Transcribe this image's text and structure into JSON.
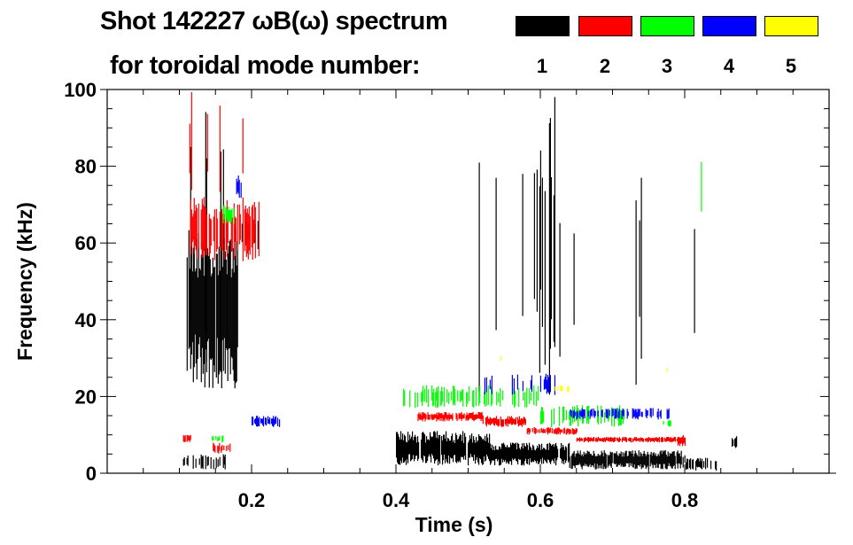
{
  "chart_data": {
    "type": "heatmap",
    "title_line1": "Shot 142227 ωB(ω) spectrum",
    "title_line2": "for toroidal mode number:",
    "xlabel": "Time (s)",
    "ylabel": "Frequency (kHz)",
    "xlim": [
      0,
      1.0
    ],
    "ylim": [
      0,
      100
    ],
    "xticks": [
      0.2,
      0.4,
      0.6,
      0.8
    ],
    "xtick_labels": [
      "0.2",
      "0.4",
      "0.6",
      "0.8"
    ],
    "yticks": [
      0,
      20,
      40,
      60,
      80,
      100
    ],
    "ytick_labels": [
      "0",
      "20",
      "40",
      "60",
      "80",
      "100"
    ],
    "legend": [
      {
        "label": "1",
        "color": "#000000"
      },
      {
        "label": "2",
        "color": "#ff0000"
      },
      {
        "label": "3",
        "color": "#00ff00"
      },
      {
        "label": "4",
        "color": "#0000ff"
      },
      {
        "label": "5",
        "color": "#ffff00"
      }
    ],
    "legend_placement": "top-right",
    "features": [
      {
        "mode": 1,
        "t": [
          0.11,
          0.18
        ],
        "f": [
          22,
          66
        ],
        "density": 0.9
      },
      {
        "mode": 1,
        "t": [
          0.11,
          0.17
        ],
        "f": [
          15,
          95
        ],
        "density": 0.15
      },
      {
        "mode": 1,
        "t": [
          0.105,
          0.17
        ],
        "f": [
          1,
          5
        ],
        "density": 0.5
      },
      {
        "mode": 1,
        "t": [
          0.18,
          0.21
        ],
        "f": [
          58,
          66
        ],
        "density": 0.3
      },
      {
        "mode": 1,
        "t": [
          0.4,
          0.53
        ],
        "f": [
          2,
          11
        ],
        "density": 0.95
      },
      {
        "mode": 1,
        "t": [
          0.53,
          0.64
        ],
        "f": [
          2,
          8
        ],
        "density": 0.95
      },
      {
        "mode": 1,
        "t": [
          0.64,
          0.8
        ],
        "f": [
          1,
          6
        ],
        "density": 0.95
      },
      {
        "mode": 1,
        "t": [
          0.8,
          0.845
        ],
        "f": [
          0.5,
          4
        ],
        "density": 0.6
      },
      {
        "mode": 1,
        "t": [
          0.585,
          0.62
        ],
        "f": [
          20,
          100
        ],
        "density": 0.35
      },
      {
        "mode": 1,
        "t": [
          0.865,
          0.872
        ],
        "f": [
          6,
          10
        ],
        "density": 0.9
      },
      {
        "mode": 1,
        "t": [
          0.5,
          0.82
        ],
        "f": [
          20,
          85
        ],
        "density": 0.02
      },
      {
        "mode": 2,
        "t": [
          0.115,
          0.21
        ],
        "f": [
          55,
          72
        ],
        "density": 0.6
      },
      {
        "mode": 2,
        "t": [
          0.11,
          0.19
        ],
        "f": [
          72,
          100
        ],
        "density": 0.08
      },
      {
        "mode": 2,
        "t": [
          0.105,
          0.115
        ],
        "f": [
          8,
          10
        ],
        "density": 0.8
      },
      {
        "mode": 2,
        "t": [
          0.145,
          0.17
        ],
        "f": [
          5,
          8
        ],
        "density": 0.6
      },
      {
        "mode": 2,
        "t": [
          0.43,
          0.52
        ],
        "f": [
          13.5,
          16
        ],
        "density": 0.9
      },
      {
        "mode": 2,
        "t": [
          0.52,
          0.58
        ],
        "f": [
          12,
          15
        ],
        "density": 0.9
      },
      {
        "mode": 2,
        "t": [
          0.58,
          0.65
        ],
        "f": [
          10,
          12
        ],
        "density": 0.9
      },
      {
        "mode": 2,
        "t": [
          0.65,
          0.8
        ],
        "f": [
          8,
          9.5
        ],
        "density": 0.95
      },
      {
        "mode": 2,
        "t": [
          0.79,
          0.8
        ],
        "f": [
          7,
          10
        ],
        "density": 0.9
      },
      {
        "mode": 3,
        "t": [
          0.16,
          0.175
        ],
        "f": [
          65,
          70
        ],
        "density": 0.6
      },
      {
        "mode": 3,
        "t": [
          0.145,
          0.16
        ],
        "f": [
          8,
          10
        ],
        "density": 0.6
      },
      {
        "mode": 3,
        "t": [
          0.41,
          0.6
        ],
        "f": [
          17,
          23
        ],
        "density": 0.35
      },
      {
        "mode": 3,
        "t": [
          0.6,
          0.72
        ],
        "f": [
          12,
          18
        ],
        "density": 0.35
      },
      {
        "mode": 3,
        "t": [
          0.77,
          0.78
        ],
        "f": [
          12,
          14
        ],
        "density": 0.7
      },
      {
        "mode": 3,
        "t": [
          0.82,
          0.83
        ],
        "f": [
          65,
          83
        ],
        "density": 0.2
      },
      {
        "mode": 4,
        "t": [
          0.2,
          0.24
        ],
        "f": [
          12,
          15
        ],
        "density": 0.8
      },
      {
        "mode": 4,
        "t": [
          0.17,
          0.185
        ],
        "f": [
          71,
          78
        ],
        "density": 0.3
      },
      {
        "mode": 4,
        "t": [
          0.52,
          0.62
        ],
        "f": [
          20,
          26
        ],
        "density": 0.25
      },
      {
        "mode": 4,
        "t": [
          0.64,
          0.78
        ],
        "f": [
          14,
          17
        ],
        "density": 0.5
      },
      {
        "mode": 5,
        "t": [
          0.54,
          0.55
        ],
        "f": [
          29,
          31
        ],
        "density": 0.5
      },
      {
        "mode": 5,
        "t": [
          0.62,
          0.64
        ],
        "f": [
          21,
          23
        ],
        "density": 0.5
      },
      {
        "mode": 5,
        "t": [
          0.775,
          0.78
        ],
        "f": [
          26,
          28
        ],
        "density": 0.5
      }
    ]
  }
}
